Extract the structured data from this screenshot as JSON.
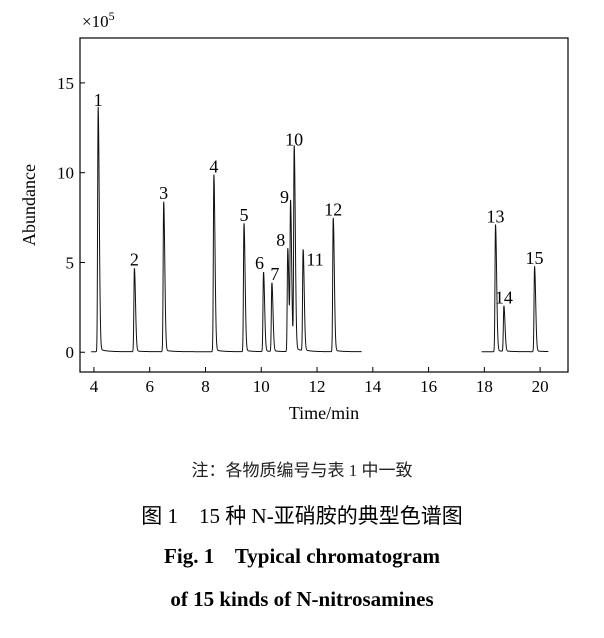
{
  "chart_data": {
    "type": "line",
    "title": "",
    "xlabel": "Time/min",
    "ylabel": "Abundance",
    "y_multiplier": "×10",
    "y_multiplier_exp": "5",
    "xlim": [
      3.5,
      21
    ],
    "ylim": [
      -1.1,
      17.5
    ],
    "xticks": [
      4,
      6,
      8,
      10,
      12,
      14,
      16,
      18,
      20
    ],
    "yticks": [
      0,
      5,
      10,
      15
    ],
    "grid": false,
    "trace_segments": [
      [
        3.9,
        13.6
      ],
      [
        17.9,
        20.3
      ]
    ],
    "peaks": [
      {
        "label": "1",
        "time": 4.15,
        "abundance": 13.5
      },
      {
        "label": "2",
        "time": 5.45,
        "abundance": 4.6
      },
      {
        "label": "3",
        "time": 6.5,
        "abundance": 8.3
      },
      {
        "label": "4",
        "time": 8.3,
        "abundance": 9.8
      },
      {
        "label": "5",
        "time": 9.38,
        "abundance": 7.1
      },
      {
        "label": "6",
        "time": 10.08,
        "abundance": 4.4
      },
      {
        "label": "7",
        "time": 10.38,
        "abundance": 3.8
      },
      {
        "label": "8",
        "time": 10.95,
        "abundance": 5.7
      },
      {
        "label": "9",
        "time": 11.05,
        "abundance": 8.1
      },
      {
        "label": "10",
        "time": 11.18,
        "abundance": 11.3
      },
      {
        "label": "11",
        "time": 11.5,
        "abundance": 5.6
      },
      {
        "label": "12",
        "time": 12.58,
        "abundance": 7.4
      },
      {
        "label": "13",
        "time": 18.4,
        "abundance": 7.0
      },
      {
        "label": "14",
        "time": 18.7,
        "abundance": 2.5
      },
      {
        "label": "15",
        "time": 19.8,
        "abundance": 4.7
      }
    ]
  },
  "caption": {
    "note": "注：各物质编号与表 1 中一致",
    "chinese": "图 1    15 种 N-亚硝胺的典型色谱图",
    "english_line1": "Fig. 1    Typical chromatogram",
    "english_line2": "of 15 kinds of N-nitrosamines"
  }
}
